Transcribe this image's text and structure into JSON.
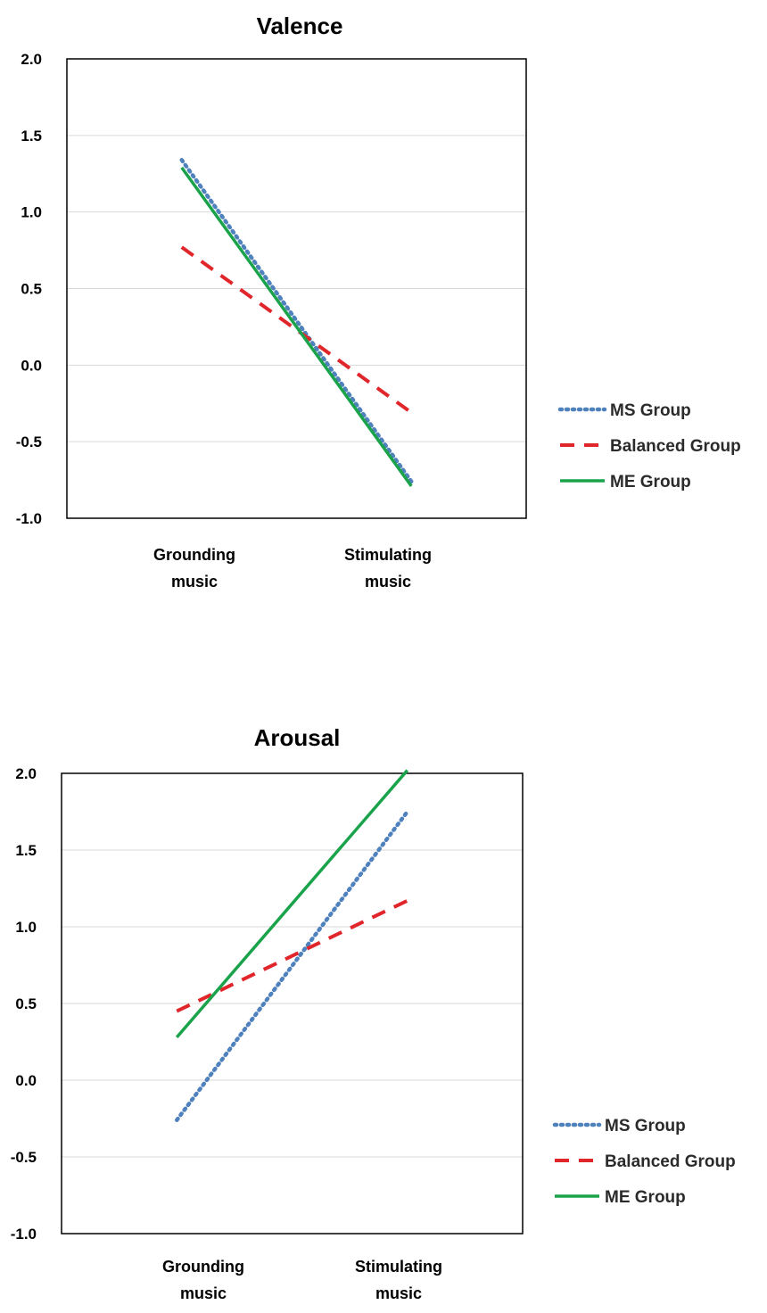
{
  "chart_data": [
    {
      "type": "line",
      "title": "Valence",
      "categories": [
        [
          "Grounding",
          "music"
        ],
        [
          "Stimulating",
          "music"
        ]
      ],
      "ylim": [
        -1.0,
        2.0
      ],
      "yticks": [
        "2.0",
        "1.5",
        "1.0",
        "0.5",
        "0.0",
        "-0.5",
        "-1.0"
      ],
      "grid": true,
      "legend_position": "right",
      "series": [
        {
          "name": "MS Group",
          "values": [
            1.34,
            -0.76
          ],
          "color": "#4f81bd",
          "dash": "dotted"
        },
        {
          "name": "Balanced Group",
          "values": [
            0.77,
            -0.31
          ],
          "color": "#e0262b",
          "dash": "dashed"
        },
        {
          "name": "ME Group",
          "values": [
            1.29,
            -0.79
          ],
          "color": "#1aa34a",
          "dash": "solid"
        }
      ]
    },
    {
      "type": "line",
      "title": "Arousal",
      "categories": [
        [
          "Grounding",
          "music"
        ],
        [
          "Stimulating",
          "music"
        ]
      ],
      "ylim": [
        -1.0,
        2.0
      ],
      "yticks": [
        "2.0",
        "1.5",
        "1.0",
        "0.5",
        "0.0",
        "-0.5",
        "-1.0"
      ],
      "grid": true,
      "legend_position": "right",
      "series": [
        {
          "name": "MS Group",
          "values": [
            -0.26,
            1.75
          ],
          "color": "#4f81bd",
          "dash": "dotted"
        },
        {
          "name": "Balanced Group",
          "values": [
            0.45,
            1.17
          ],
          "color": "#e0262b",
          "dash": "dashed"
        },
        {
          "name": "ME Group",
          "values": [
            0.28,
            2.02
          ],
          "color": "#1aa34a",
          "dash": "solid"
        }
      ]
    }
  ]
}
